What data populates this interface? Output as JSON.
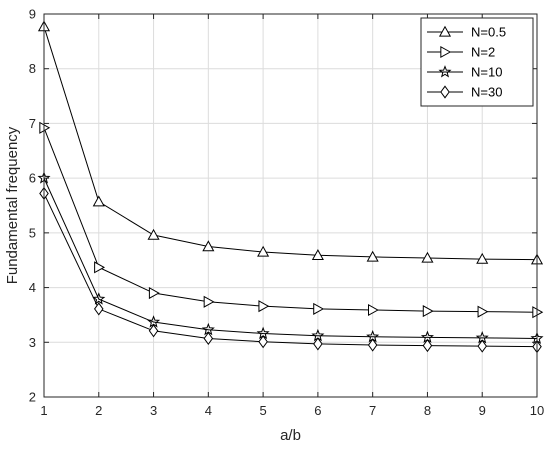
{
  "chart_data": {
    "type": "line",
    "title": "",
    "xlabel": "a/b",
    "ylabel": "Fundamental frequency",
    "xlim": [
      1,
      10
    ],
    "ylim": [
      2,
      9
    ],
    "x": [
      1,
      2,
      3,
      4,
      5,
      6,
      7,
      8,
      9,
      10
    ],
    "xticks": [
      "1",
      "2",
      "3",
      "4",
      "5",
      "6",
      "7",
      "8",
      "9",
      "10"
    ],
    "yticks": [
      "2",
      "3",
      "4",
      "5",
      "6",
      "7",
      "8",
      "9"
    ],
    "grid": true,
    "legend_position": "top-right",
    "line_color": "#000000",
    "grid_color": "#dcdcdc",
    "series": [
      {
        "name": "N=0.5",
        "marker": "triangle-up",
        "values": [
          8.77,
          5.57,
          4.96,
          4.75,
          4.65,
          4.59,
          4.56,
          4.54,
          4.52,
          4.51
        ]
      },
      {
        "name": "N=2",
        "marker": "triangle-right",
        "values": [
          6.92,
          4.37,
          3.9,
          3.74,
          3.66,
          3.61,
          3.59,
          3.57,
          3.56,
          3.55
        ]
      },
      {
        "name": "N=10",
        "marker": "star",
        "values": [
          6.0,
          3.79,
          3.37,
          3.23,
          3.16,
          3.12,
          3.1,
          3.09,
          3.08,
          3.07
        ]
      },
      {
        "name": "N=30",
        "marker": "diamond",
        "values": [
          5.72,
          3.61,
          3.21,
          3.07,
          3.01,
          2.97,
          2.95,
          2.94,
          2.93,
          2.92
        ]
      }
    ]
  }
}
